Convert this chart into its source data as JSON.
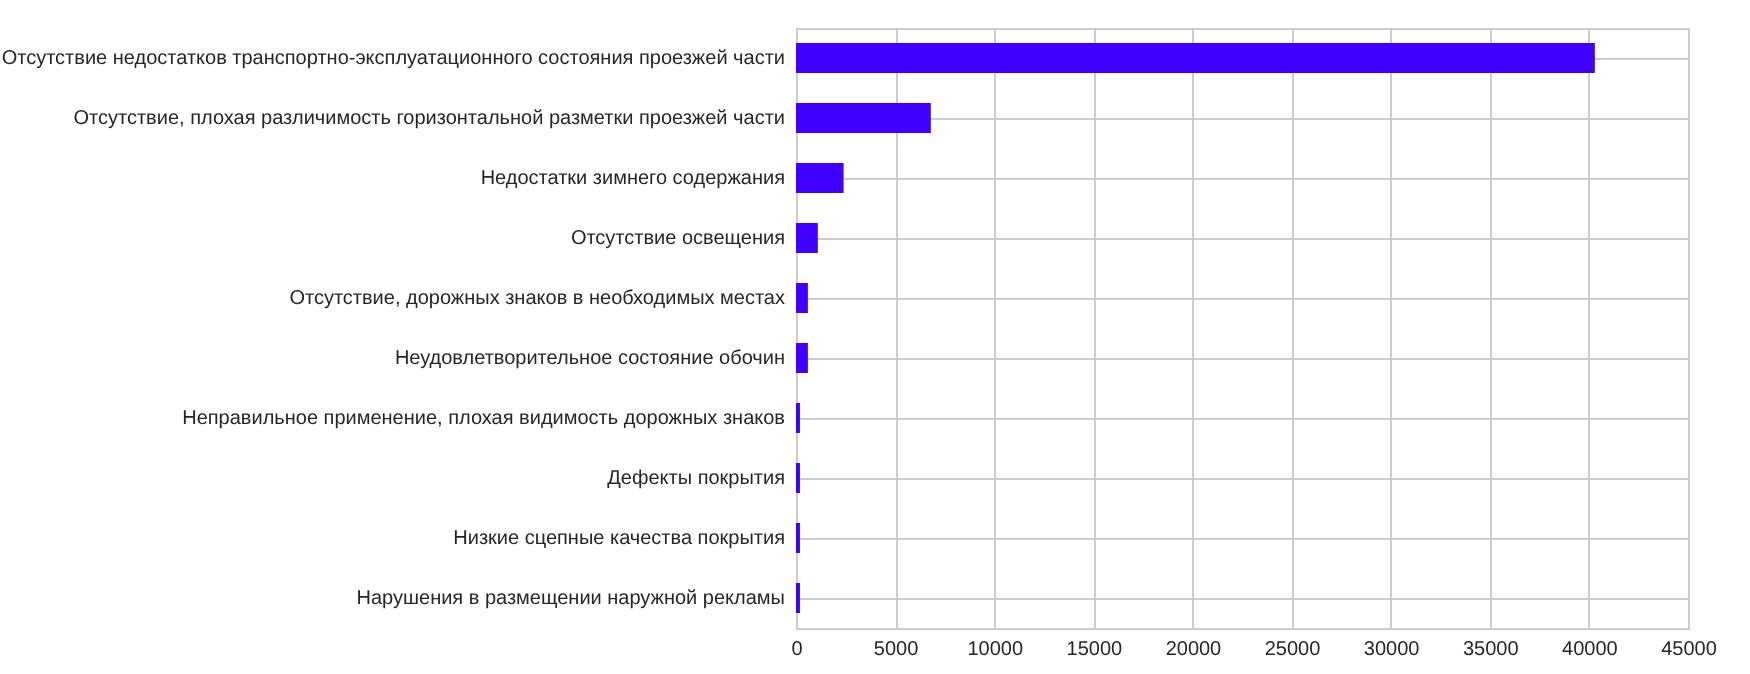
{
  "chart_data": {
    "type": "bar",
    "orientation": "horizontal",
    "categories": [
      "Отсутствие недостатков транспортно-эксплуатационного состояния проезжей части",
      "Отсутствие, плохая различимость горизонтальной разметки проезжей части",
      "Недостатки зимнего содержания",
      "Отсутствие освещения",
      "Отсутствие, дорожных знаков в необходимых местах",
      "Неудовлетворительное состояние обочин",
      "Неправильное применение, плохая видимость дорожных знаков",
      "Дефекты покрытия",
      "Низкие сцепные качества покрытия",
      "Нарушения в размещении наружной рекламы"
    ],
    "values": [
      40300,
      6800,
      2400,
      1100,
      600,
      600,
      200,
      200,
      200,
      200
    ],
    "color": "#3f00ff",
    "xlim": [
      0,
      45000
    ],
    "xticks": [
      0,
      5000,
      10000,
      15000,
      20000,
      25000,
      30000,
      35000,
      40000,
      45000
    ],
    "grid": true
  }
}
